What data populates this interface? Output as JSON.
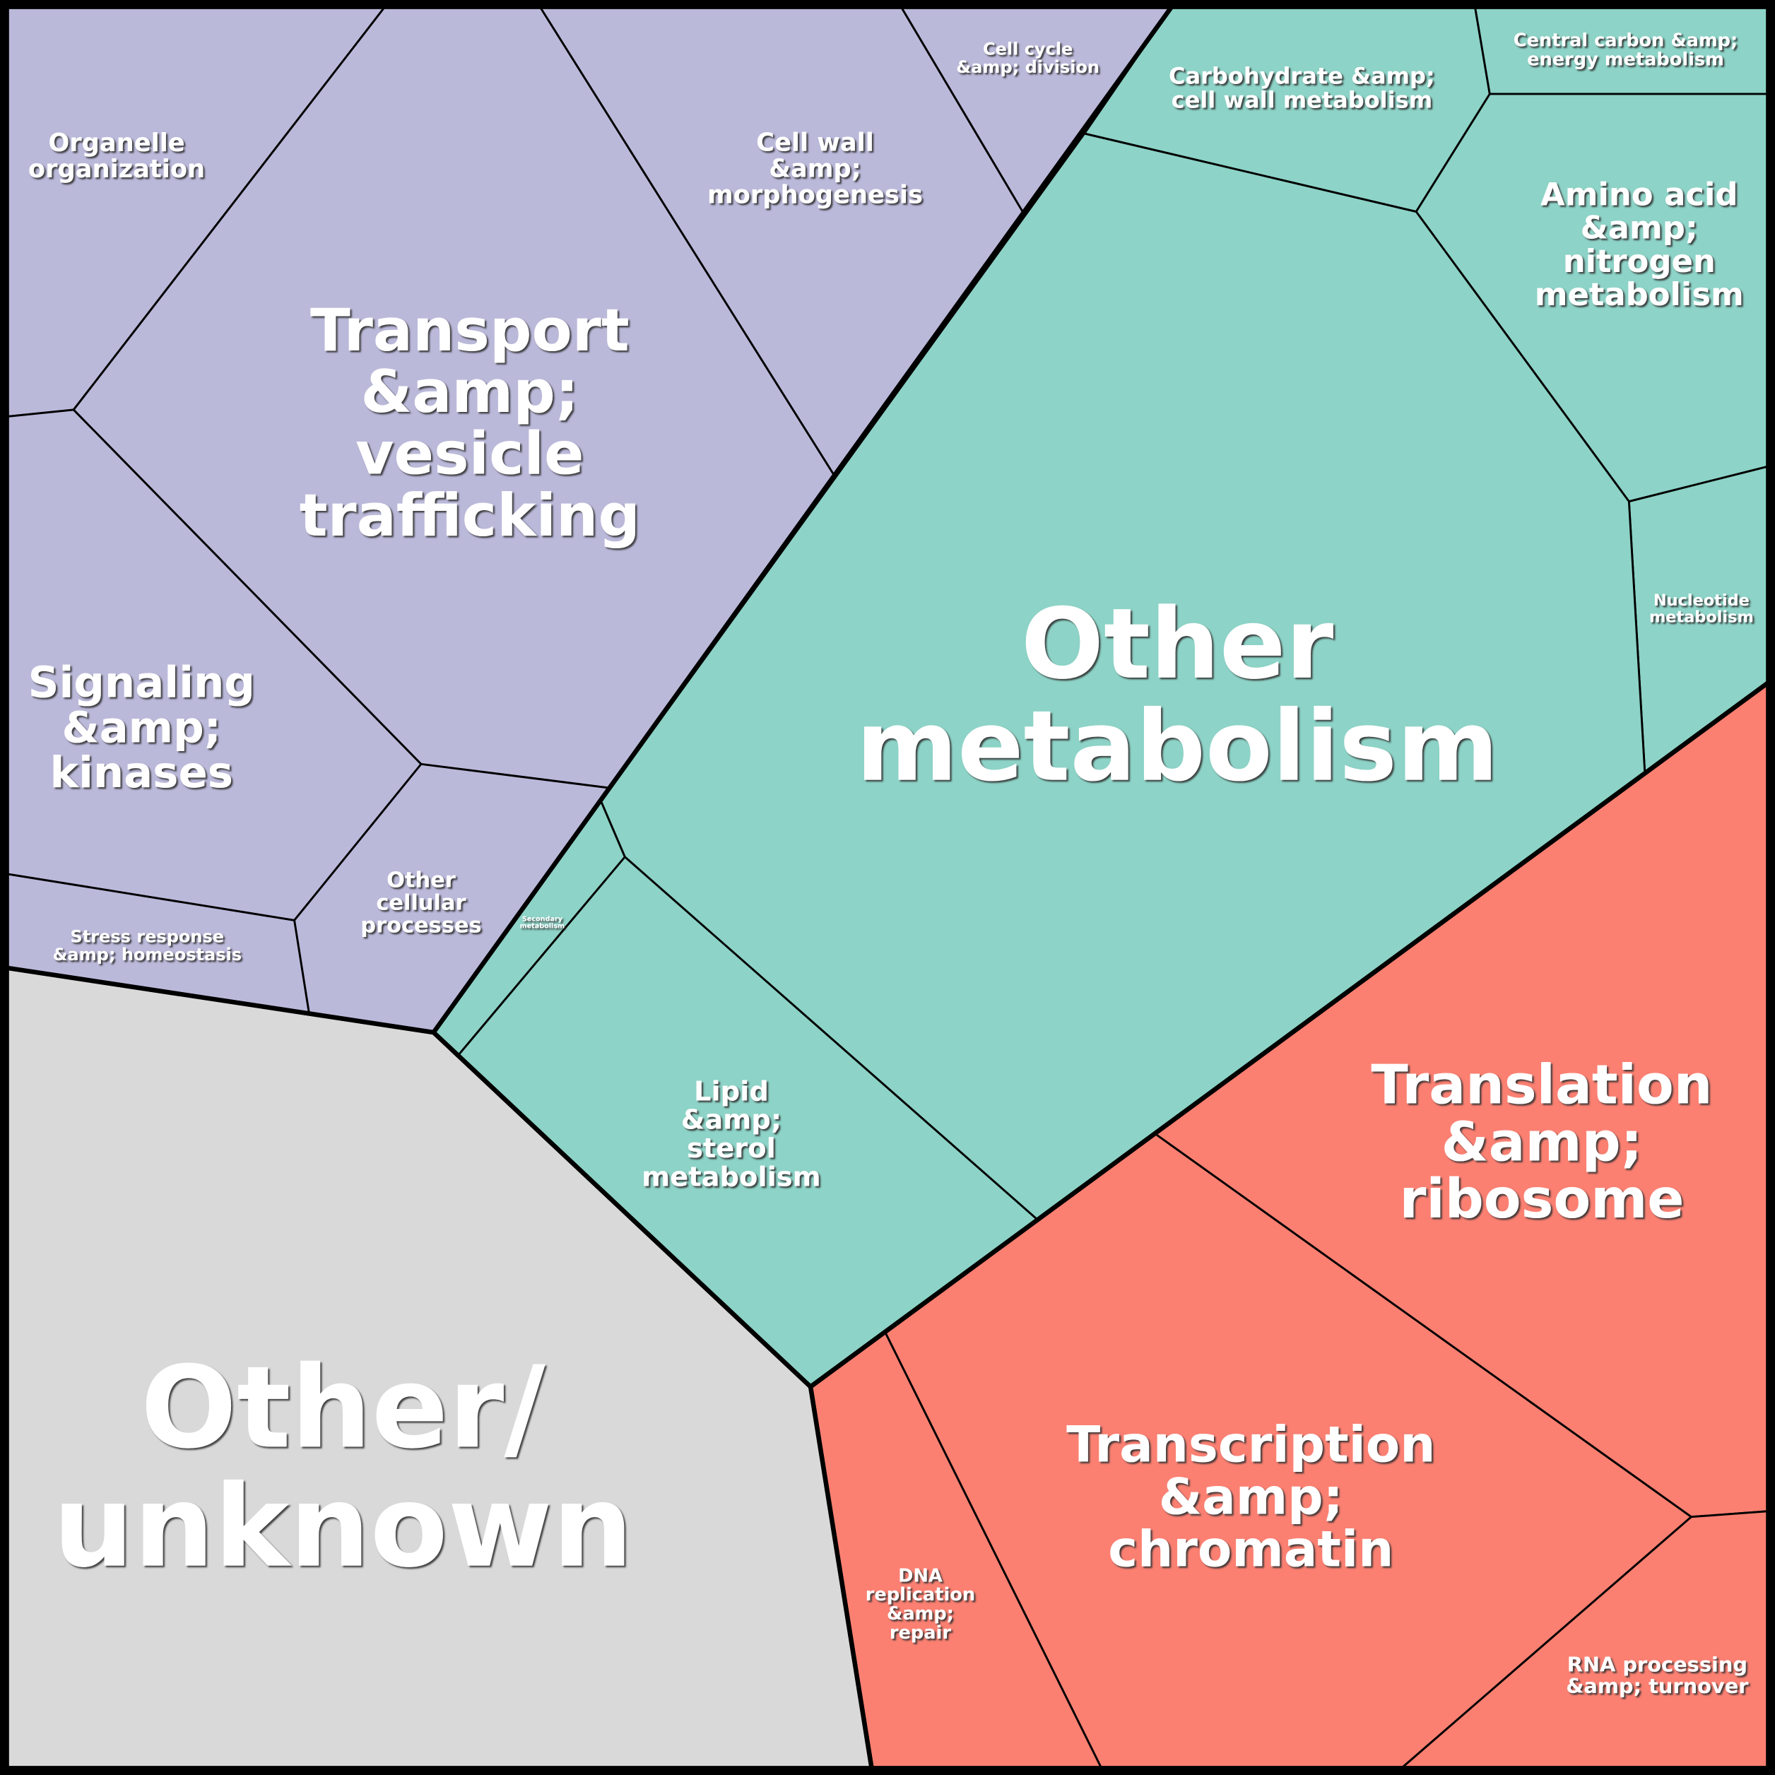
{
  "groups": [
    {
      "color": "#bbb9da",
      "cells": [
        {
          "label": [
            "Organelle",
            "organization"
          ]
        },
        {
          "label": [
            "Transport",
            "&amp;",
            "vesicle",
            "trafficking"
          ]
        },
        {
          "label": [
            "Cell wall",
            "&amp;",
            "morphogenesis"
          ]
        },
        {
          "label": [
            "Cell cycle",
            "&amp; division"
          ]
        },
        {
          "label": [
            "Signaling",
            "&amp;",
            "kinases"
          ]
        },
        {
          "label": [
            "Other",
            "cellular",
            "processes"
          ]
        },
        {
          "label": [
            "Stress response",
            "&amp; homeostasis"
          ]
        }
      ]
    },
    {
      "color": "#8dd3c7",
      "cells": [
        {
          "label": [
            "Carbohydrate &amp;",
            "cell wall metabolism"
          ]
        },
        {
          "label": [
            "Central carbon &amp;",
            "energy metabolism"
          ]
        },
        {
          "label": [
            "Amino acid",
            "&amp;",
            "nitrogen",
            "metabolism"
          ]
        },
        {
          "label": [
            "Nucleotide",
            "metabolism"
          ]
        },
        {
          "label": [
            "Other",
            "metabolism"
          ]
        },
        {
          "label": [
            "Secondary",
            "metabolism"
          ]
        },
        {
          "label": [
            "Lipid",
            "&amp;",
            "sterol",
            "metabolism"
          ]
        }
      ]
    },
    {
      "color": "#fb8072",
      "cells": [
        {
          "label": [
            "Translation",
            "&amp;",
            "ribosome"
          ]
        },
        {
          "label": [
            "Transcription",
            "&amp;",
            "chromatin"
          ]
        },
        {
          "label": [
            "DNA",
            "replication",
            "&amp;",
            "repair"
          ]
        },
        {
          "label": [
            "RNA processing",
            "&amp; turnover"
          ]
        }
      ]
    },
    {
      "color": "#d9d9d9",
      "cells": [
        {
          "label": [
            "Other/",
            "unknown"
          ]
        }
      ]
    }
  ]
}
